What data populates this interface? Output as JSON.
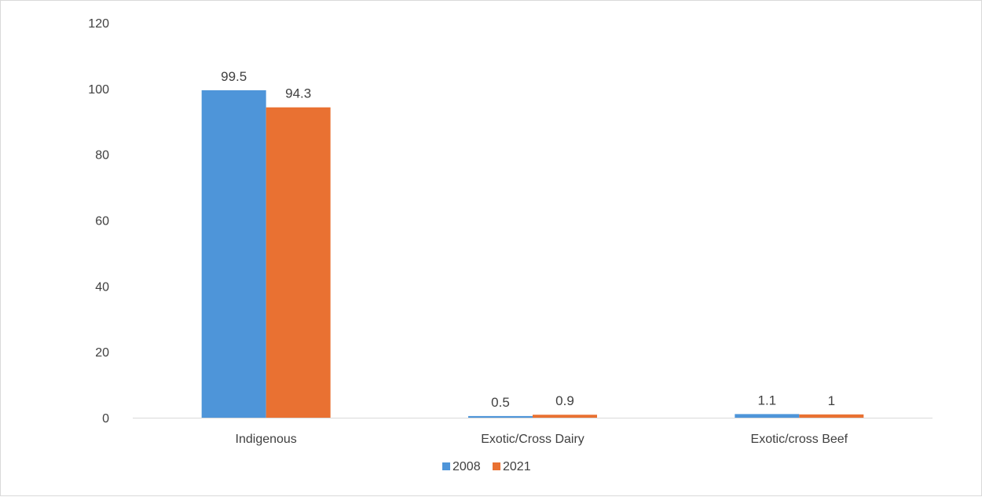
{
  "chart_data": {
    "type": "bar",
    "title": "",
    "xlabel": "",
    "ylabel": "",
    "categories": [
      "Indigenous",
      "Exotic/Cross  Dairy",
      "Exotic/cross Beef"
    ],
    "series": [
      {
        "name": "2008",
        "values": [
          99.5,
          0.5,
          1.1
        ],
        "labels": [
          "99.5",
          "0.5",
          "1.1"
        ],
        "color": "#4e95d9"
      },
      {
        "name": "2021",
        "values": [
          94.3,
          0.9,
          1.0
        ],
        "labels": [
          "94.3",
          "0.9",
          "1"
        ],
        "color": "#e97132"
      }
    ],
    "ylim": [
      0,
      120
    ],
    "yticks": [
      "0",
      "20",
      "40",
      "60",
      "80",
      "100",
      "120"
    ],
    "grid": false,
    "legend": "bottom",
    "axis_color": "#d9d9d9",
    "text_color": "#404040"
  }
}
